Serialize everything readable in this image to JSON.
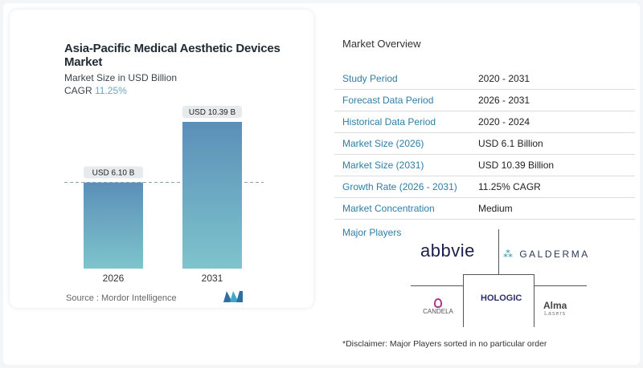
{
  "chart_data": {
    "type": "bar",
    "title": "Asia-Pacific Medical Aesthetic Devices Market",
    "subtitle": "Market Size in USD Billion",
    "cagr_label": "CAGR",
    "cagr_value": "11.25%",
    "categories": [
      "2026",
      "2031"
    ],
    "values": [
      6.1,
      10.39
    ],
    "data_labels": [
      "USD 6.10 B",
      "USD 10.39 B"
    ],
    "ylim": [
      0,
      10.39
    ],
    "grid": false,
    "reference_line": 6.1,
    "bar_colors": [
      "#5b8fb8",
      "#7ec4cc"
    ]
  },
  "source": "Source :  Mordor Intelligence",
  "overview": {
    "title": "Market Overview",
    "rows": [
      {
        "label": "Study Period",
        "value": "2020 - 2031"
      },
      {
        "label": "Forecast Data Period",
        "value": "2026 - 2031"
      },
      {
        "label": "Historical Data Period",
        "value": "2020 - 2024"
      },
      {
        "label": "Market Size (2026)",
        "value": "USD 6.1 Billion"
      },
      {
        "label": "Market Size (2031)",
        "value": "USD 10.39 Billion"
      },
      {
        "label": "Growth Rate (2026 - 2031)",
        "value": "11.25% CAGR"
      },
      {
        "label": "Market Concentration",
        "value": "Medium"
      }
    ]
  },
  "players": {
    "title": "Major Players",
    "names": [
      "abbvie",
      "GALDERMA",
      "CANDELA",
      "HOLOGIC",
      "Alma",
      "Lasers"
    ]
  },
  "disclaimer": "*Disclaimer: Major Players sorted in no particular order",
  "colors": {
    "accent": "#2e7ea6",
    "bar_top": "#5b8fb8",
    "bar_bottom": "#7ec4cc"
  }
}
